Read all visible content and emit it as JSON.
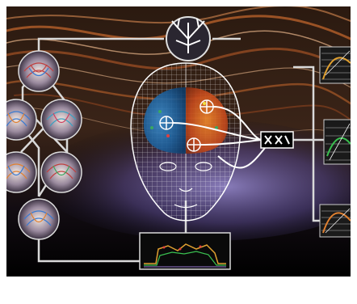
{
  "colors": {
    "background": "#000000",
    "frame": "#ffffff",
    "flow_orange": "#c96a2e",
    "flow_light": "#e8b58a",
    "haze_purple": "#7b6fb0",
    "connector": "#d9d9d9",
    "region_blue": "#2a7fc0",
    "region_orange": "#d86a2a",
    "region_green": "#3aa860"
  },
  "icons": {
    "top_node": "neuron-tree-icon",
    "left_nodes": "fiber-tract-icon",
    "hub": "network-hub-icon",
    "right_panels": "signal-trace-icon",
    "bottom_panel": "timeseries-plot-icon"
  }
}
